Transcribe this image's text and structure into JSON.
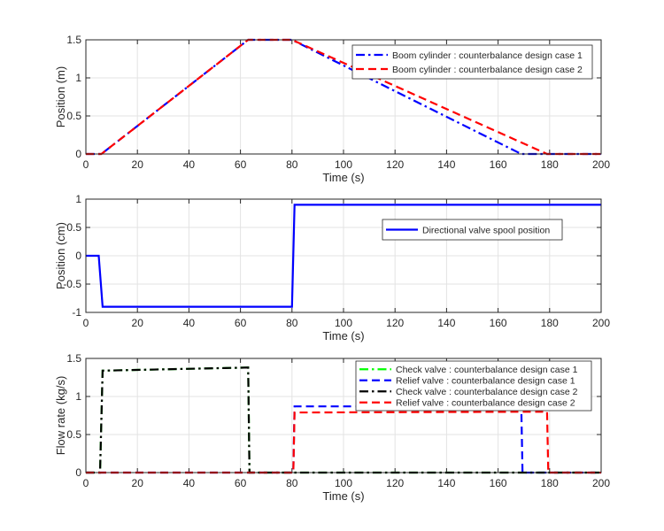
{
  "chart_data": [
    {
      "type": "line",
      "xlabel": "Time (s)",
      "ylabel": "Position (m)",
      "xlim": [
        0,
        200
      ],
      "ylim": [
        0,
        1.5
      ],
      "xticks": [
        "0",
        "20",
        "40",
        "60",
        "80",
        "100",
        "120",
        "140",
        "160",
        "180",
        "200"
      ],
      "yticks": [
        "0",
        "0.5",
        "1",
        "1.5"
      ],
      "grid": true,
      "legend_position": "top-right",
      "series": [
        {
          "name": "Boom cylinder : counterbalance design case 1",
          "color": "#0000ff",
          "dash": "dashdot",
          "x": [
            0,
            6,
            63,
            80,
            169,
            200
          ],
          "y": [
            0,
            0,
            1.5,
            1.5,
            0,
            0
          ]
        },
        {
          "name": "Boom cylinder : counterbalance design case 2",
          "color": "#ff0000",
          "dash": "dashed",
          "x": [
            0,
            6,
            63,
            80,
            179,
            200
          ],
          "y": [
            0,
            0,
            1.5,
            1.5,
            0,
            0
          ]
        }
      ]
    },
    {
      "type": "line",
      "xlabel": "Time (s)",
      "ylabel": "Position (cm)",
      "xlim": [
        0,
        200
      ],
      "ylim": [
        -1,
        1
      ],
      "xticks": [
        "0",
        "20",
        "40",
        "60",
        "80",
        "100",
        "120",
        "140",
        "160",
        "180",
        "200"
      ],
      "yticks": [
        "-1",
        "-0.5",
        "0",
        "0.5",
        "1"
      ],
      "grid": true,
      "legend_position": "center-right",
      "series": [
        {
          "name": "Directional valve spool position",
          "color": "#0000ff",
          "dash": "solid",
          "x": [
            0,
            5,
            6.5,
            80,
            81,
            200
          ],
          "y": [
            0,
            0,
            -0.9,
            -0.9,
            0.9,
            0.9
          ]
        }
      ]
    },
    {
      "type": "line",
      "xlabel": "Time (s)",
      "ylabel": "Flow rate (kg/s)",
      "xlim": [
        0,
        200
      ],
      "ylim": [
        0,
        1.5
      ],
      "xticks": [
        "0",
        "20",
        "40",
        "60",
        "80",
        "100",
        "120",
        "140",
        "160",
        "180",
        "200"
      ],
      "yticks": [
        "0",
        "0.5",
        "1",
        "1.5"
      ],
      "grid": true,
      "legend_position": "top-right",
      "series": [
        {
          "name": "Check valve : counterbalance design case 1",
          "color": "#00ff00",
          "dash": "dashdot",
          "x": [
            0,
            5.5,
            6.5,
            63,
            63.5,
            200
          ],
          "y": [
            0,
            0,
            1.34,
            1.38,
            0,
            0
          ]
        },
        {
          "name": "Relief valve : counterbalance design case 1",
          "color": "#0000ff",
          "dash": "dashed",
          "x": [
            0,
            80.5,
            81,
            169,
            169.5,
            200
          ],
          "y": [
            0,
            0,
            0.87,
            0.87,
            0,
            0
          ]
        },
        {
          "name": "Check valve : counterbalance design case 2",
          "color": "#000000",
          "dash": "dashdot",
          "x": [
            0,
            5.5,
            6.5,
            63,
            63.5,
            200
          ],
          "y": [
            0,
            0,
            1.34,
            1.38,
            0,
            0
          ]
        },
        {
          "name": "Relief valve : counterbalance design case 2",
          "color": "#ff0000",
          "dash": "dashed",
          "x": [
            0,
            80.5,
            81,
            179,
            179.5,
            200
          ],
          "y": [
            0,
            0,
            0.79,
            0.8,
            0,
            0
          ]
        }
      ]
    }
  ]
}
